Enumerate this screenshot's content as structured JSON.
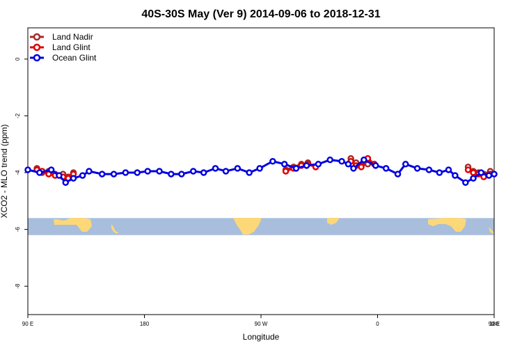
{
  "chart_data": {
    "type": "line",
    "title": "40S-30S May (Ver 9)   2014-09-06 to 2018-12-31",
    "xlabel": "Longitude",
    "ylabel": "XCO2 - MLO trend (ppm)",
    "xlim": [
      90,
      450
    ],
    "ylim": [
      -9,
      1.1
    ],
    "x_ticks": [
      {
        "value": 90,
        "label": "90 E"
      },
      {
        "value": 180,
        "label": "180"
      },
      {
        "value": 270,
        "label": "90 W"
      },
      {
        "value": 360,
        "label": "0"
      },
      {
        "value": 450,
        "label": "90 E"
      },
      {
        "value": 540,
        "label": "180"
      }
    ],
    "y_ticks": [
      {
        "value": 0,
        "label": "0"
      },
      {
        "value": -2,
        "label": "-2"
      },
      {
        "value": -4,
        "label": "-4"
      },
      {
        "value": -6,
        "label": "-6"
      },
      {
        "value": -8,
        "label": "-8"
      }
    ],
    "legend_position": "top-left",
    "map_band": {
      "y_range": [
        -6.2,
        -5.6
      ],
      "ocean_color": "#a8bedc",
      "land_color": "#fcd878"
    },
    "series": [
      {
        "name": "Land Nadir",
        "color": "#a52a2a",
        "x": [
          93.5,
          98.5,
          103.5,
          108.5,
          113.5,
          118.5,
          123.5,
          128.5,
          133.5
        ],
        "y": [
          -3.85,
          -4.0,
          -3.95,
          -4.1,
          -4.05,
          -4.15,
          -4.2,
          -4.0,
          -3.95
        ]
      },
      {
        "name": "Land Glint",
        "color": "#e00000",
        "x": [
          93.5,
          98.5,
          103.5,
          108.5,
          113.5,
          118.5,
          123.5,
          128.5,
          133.5
        ],
        "y": [
          -3.9,
          -4.0,
          -4.05,
          -4.1,
          -4.15,
          -4.2,
          -4.25,
          -4.1,
          -4.0
        ]
      },
      {
        "name": "Ocean Glint",
        "color": "#0000e0",
        "x": [
          93.5,
          98.5,
          103.5,
          108.5,
          113.5,
          118.5,
          123.5,
          128.5,
          133.5
        ],
        "y": [
          -3.9,
          -4.0,
          -3.9,
          -4.1,
          -4.35,
          -4.2,
          -4.2,
          -4.0,
          -3.95
        ]
      }
    ]
  }
}
